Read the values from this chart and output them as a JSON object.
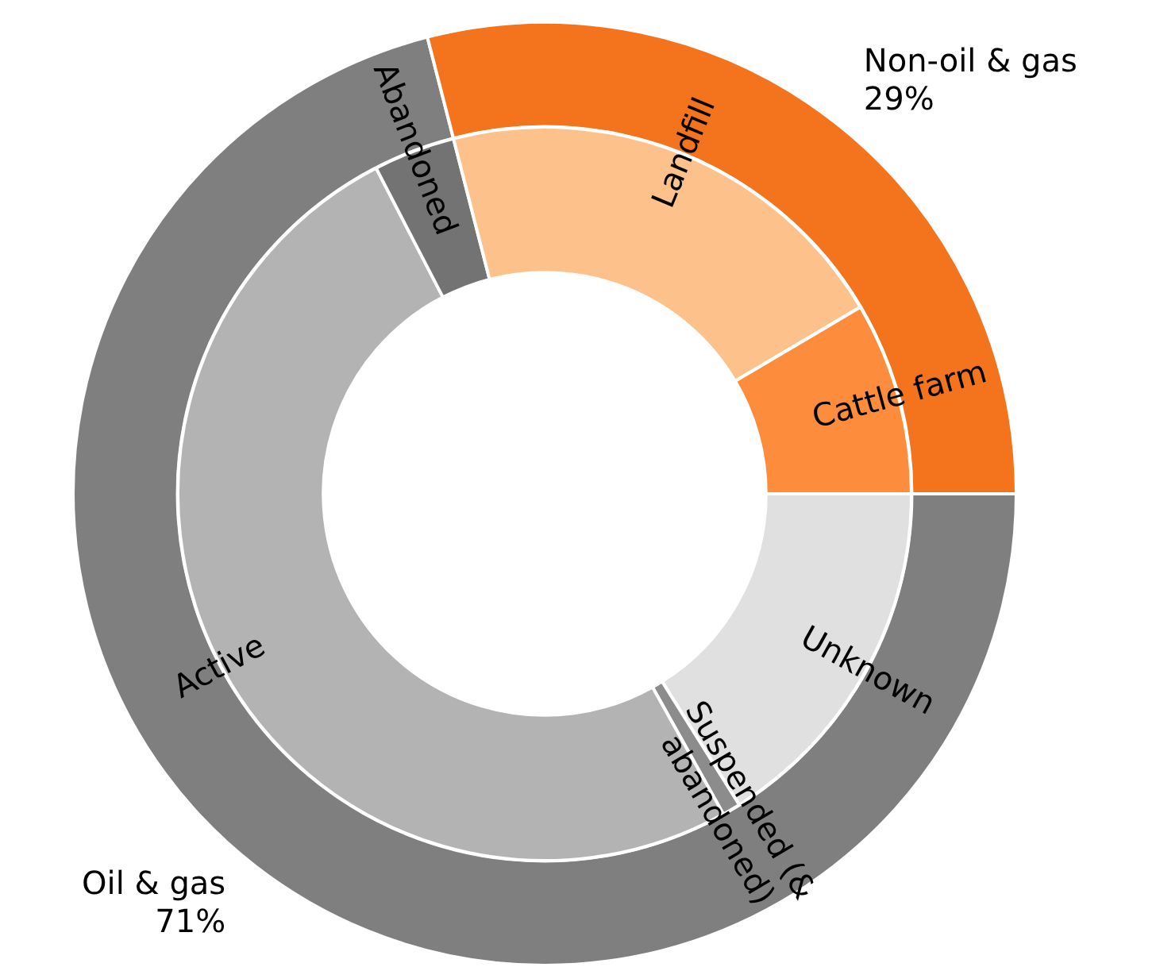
{
  "chart_data": [
    {
      "type": "donut",
      "legend": false,
      "categories": [
        "Non-oil & gas",
        "Oil & gas"
      ],
      "values": [
        29,
        71
      ],
      "value_labels": [
        "29%",
        "71%"
      ],
      "colors": [
        "#f4731d",
        "#7f7f7f"
      ]
    },
    {
      "type": "donut",
      "legend": false,
      "categories": [
        "Cattle farm",
        "Landfill",
        "Abandoned",
        "Active",
        "Suspended (&\nabandoned)",
        "Unknown"
      ],
      "values": [
        8.5,
        20.5,
        3.6,
        50.5,
        0.8,
        16.1
      ],
      "colors": [
        "#fd8d3c",
        "#fdc28b",
        "#737373",
        "#b3b3b3",
        "#8c8c8c",
        "#e0e0e0"
      ]
    }
  ]
}
